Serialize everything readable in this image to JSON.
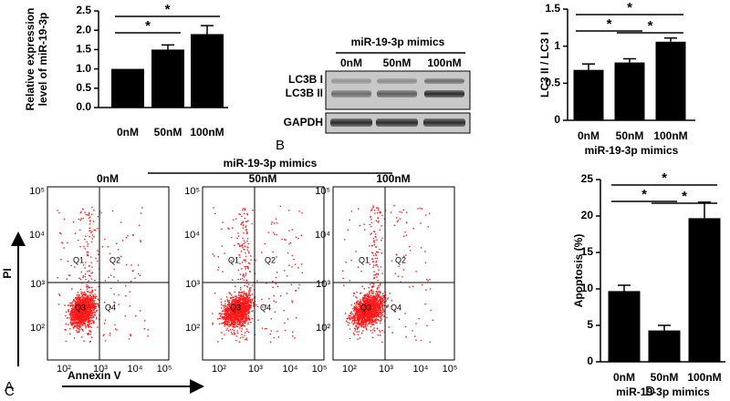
{
  "chart_data": [
    {
      "type": "bar",
      "panel": "A",
      "ylabel": "Relative expression level of miR-19-3p",
      "categories": [
        "0nM",
        "50nM",
        "100nM"
      ],
      "values": [
        1.0,
        1.5,
        1.9
      ],
      "errors": [
        0,
        0.12,
        0.22
      ],
      "color": "#000000",
      "ylim": [
        0,
        2.5
      ],
      "yticks": [
        {
          "value": 0,
          "label": "0.0"
        },
        0.5,
        {
          "value": 1,
          "label": "1.0"
        },
        1.5,
        {
          "value": 2,
          "label": "2.0"
        },
        2.5
      ],
      "significance": [
        {
          "pair": [
            "0nM",
            "50nM"
          ],
          "label": "*"
        },
        {
          "pair": [
            "0nM",
            "100nM"
          ],
          "label": "*"
        }
      ]
    },
    {
      "type": "bar",
      "ylabel": "LC3 II / LC3 I",
      "xlabel": "miR-19-3p mimics",
      "categories": [
        "0nM",
        "50nM",
        "100nM"
      ],
      "values": [
        0.68,
        0.78,
        1.06
      ],
      "errors": [
        0.08,
        0.05,
        0.05
      ],
      "color": "#000000",
      "ylim": [
        0,
        1.5
      ],
      "yticks": [
        0,
        0.5,
        1,
        1.5
      ],
      "significance": [
        {
          "pair": [
            "0nM",
            "50nM"
          ],
          "label": "*"
        },
        {
          "pair": [
            "50nM",
            "100nM"
          ],
          "label": "*"
        },
        {
          "pair": [
            "0nM",
            "100nM"
          ],
          "label": "*"
        }
      ]
    },
    {
      "type": "bar",
      "panel": "D",
      "ylabel": "Apoptosis (%)",
      "xlabel": "miR-19-3p mimics",
      "categories": [
        "0nM",
        "50nM",
        "100nM"
      ],
      "values": [
        9.7,
        4.3,
        19.7
      ],
      "errors": [
        0.8,
        0.7,
        2.2
      ],
      "color": "#000000",
      "ylim": [
        0,
        25
      ],
      "yticks": [
        0,
        5,
        10,
        15,
        20,
        25
      ],
      "significance": [
        {
          "pair": [
            "0nM",
            "50nM"
          ],
          "label": "*"
        },
        {
          "pair": [
            "50nM",
            "100nM"
          ],
          "label": "*"
        },
        {
          "pair": [
            "0nM",
            "100nM"
          ],
          "label": "*"
        }
      ]
    }
  ],
  "western_blot": {
    "panel": "B",
    "title": "miR-19-3p mimics",
    "lanes": [
      "0nM",
      "50nM",
      "100nM"
    ],
    "bands": [
      "LC3B I",
      "LC3B II",
      "GAPDH"
    ]
  },
  "flow": {
    "panel": "C",
    "title": "miR-19-3p mimics",
    "plots": [
      "0nM",
      "50nM",
      "100nM"
    ],
    "quadrants": [
      "Q1",
      "Q2",
      "Q3",
      "Q4"
    ],
    "xlabel": "Annexin V",
    "ylabel": "PI",
    "ticks": [
      "10²",
      "10³",
      "10⁴",
      "10⁵"
    ]
  }
}
